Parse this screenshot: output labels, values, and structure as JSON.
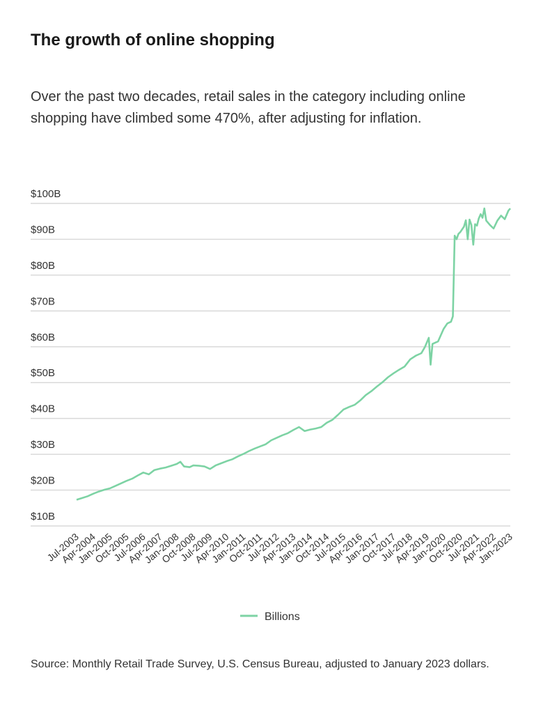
{
  "chart_data": {
    "type": "line",
    "title": "The growth of online shopping",
    "subtitle": "Over the past two decades, retail sales in the category including online shopping have climbed some 470%, after adjusting for inflation.",
    "xlabel": "",
    "ylabel": "",
    "ylim": [
      10,
      100
    ],
    "yticks": [
      "$10B",
      "$20B",
      "$30B",
      "$40B",
      "$50B",
      "$60B",
      "$70B",
      "$80B",
      "$90B",
      "$100B"
    ],
    "ytick_values": [
      10,
      20,
      30,
      40,
      50,
      60,
      70,
      80,
      90,
      100
    ],
    "xticks": [
      "Jul-2003",
      "Apr-2004",
      "Jan-2005",
      "Oct-2005",
      "Jul-2006",
      "Apr-2007",
      "Jan-2008",
      "Oct-2008",
      "Jul-2009",
      "Apr-2010",
      "Jan-2011",
      "Oct-2011",
      "Jul-2012",
      "Apr-2013",
      "Jan-2014",
      "Oct-2014",
      "Jul-2015",
      "Apr-2016",
      "Jan-2017",
      "Oct-2017",
      "Jul-2018",
      "Apr-2019",
      "Jan-2020",
      "Oct-2020",
      "Jul-2021",
      "Apr-2022",
      "Jan-2023"
    ],
    "grid": true,
    "legend_position": "bottom",
    "color": "#7dd3a4",
    "series": [
      {
        "name": "Billions",
        "x": [
          "2003-07",
          "2003-10",
          "2004-01",
          "2004-04",
          "2004-07",
          "2004-10",
          "2005-01",
          "2005-04",
          "2005-07",
          "2005-10",
          "2006-01",
          "2006-04",
          "2006-07",
          "2006-10",
          "2007-01",
          "2007-04",
          "2007-07",
          "2007-10",
          "2008-01",
          "2008-03",
          "2008-05",
          "2008-08",
          "2008-10",
          "2009-01",
          "2009-04",
          "2009-07",
          "2009-10",
          "2010-01",
          "2010-04",
          "2010-07",
          "2010-10",
          "2011-01",
          "2011-04",
          "2011-07",
          "2011-10",
          "2012-01",
          "2012-04",
          "2012-07",
          "2012-10",
          "2013-01",
          "2013-04",
          "2013-07",
          "2013-10",
          "2014-01",
          "2014-04",
          "2014-07",
          "2014-10",
          "2015-01",
          "2015-04",
          "2015-07",
          "2015-10",
          "2016-01",
          "2016-04",
          "2016-07",
          "2016-10",
          "2017-01",
          "2017-04",
          "2017-07",
          "2017-10",
          "2018-01",
          "2018-04",
          "2018-07",
          "2018-10",
          "2019-01",
          "2019-03",
          "2019-05",
          "2019-06",
          "2019-07",
          "2019-10",
          "2020-01",
          "2020-03",
          "2020-05",
          "2020-06",
          "2020-07",
          "2020-08",
          "2020-09",
          "2020-10",
          "2020-12",
          "2021-01",
          "2021-02",
          "2021-03",
          "2021-04",
          "2021-05",
          "2021-06",
          "2021-07",
          "2021-08",
          "2021-09",
          "2021-10",
          "2021-11",
          "2021-12",
          "2022-02",
          "2022-04",
          "2022-06",
          "2022-08",
          "2022-10",
          "2022-12",
          "2023-01"
        ],
        "values": [
          17.3,
          17.8,
          18.3,
          19.0,
          19.6,
          20.1,
          20.5,
          21.2,
          21.9,
          22.6,
          23.2,
          24.1,
          24.9,
          24.4,
          25.6,
          26.0,
          26.3,
          26.8,
          27.3,
          27.9,
          26.6,
          26.4,
          26.9,
          26.8,
          26.6,
          25.9,
          26.9,
          27.5,
          28.1,
          28.6,
          29.4,
          30.1,
          30.9,
          31.6,
          32.2,
          32.8,
          33.9,
          34.6,
          35.3,
          35.9,
          36.8,
          37.6,
          36.5,
          36.9,
          37.2,
          37.6,
          38.8,
          39.6,
          41.0,
          42.5,
          43.2,
          43.8,
          45.0,
          46.5,
          47.6,
          48.9,
          50.1,
          51.5,
          52.6,
          53.6,
          54.5,
          56.5,
          57.5,
          58.2,
          60.0,
          62.5,
          55.0,
          60.8,
          61.5,
          65.0,
          66.5,
          67.0,
          68.5,
          91.0,
          90.0,
          91.5,
          92.0,
          93.5,
          95.3,
          90.0,
          95.5,
          94.0,
          88.5,
          94.2,
          93.8,
          95.8,
          97.0,
          96.0,
          98.6,
          95.2,
          94.0,
          93.0,
          95.2,
          96.6,
          95.6,
          98.0,
          98.6
        ]
      }
    ]
  },
  "header": {
    "title": "The growth of online shopping",
    "subtitle": "Over the past two decades, retail sales in the category including online shopping have climbed some 470%, after adjusting for inflation."
  },
  "legend": {
    "label": "Billions"
  },
  "source": "Source: Monthly Retail Trade Survey, U.S. Census Bureau, adjusted to January 2023 dollars."
}
